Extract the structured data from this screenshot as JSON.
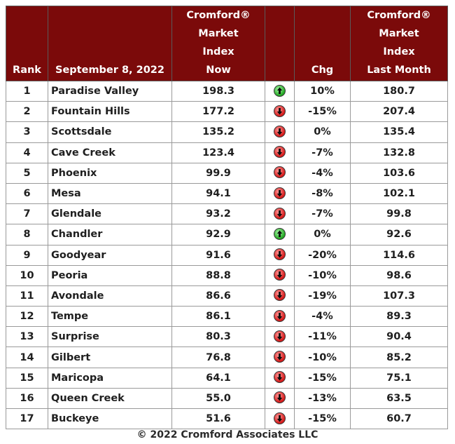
{
  "header": {
    "rank": "Rank",
    "date": "September 8, 2022",
    "cmi_now": [
      "Cromford®",
      "Market",
      "Index",
      "Now"
    ],
    "change": "Chg",
    "cmi_last_month": [
      "Cromford®",
      "Market",
      "Index",
      "Last Month"
    ]
  },
  "colors": {
    "header_bg": "#7b0a0a",
    "up_arrow": "#1fa51f",
    "down_arrow": "#d61616"
  },
  "chart_data": {
    "type": "table",
    "columns": [
      "Rank",
      "September 8, 2022",
      "Cromford® Market Index Now",
      "",
      "Chg",
      "Cromford® Market Index Last Month"
    ],
    "rows": [
      {
        "rank": "1",
        "city": "Paradise Valley",
        "now": "198.3",
        "direction": "up",
        "chg": "10%",
        "last_month": "180.7"
      },
      {
        "rank": "2",
        "city": "Fountain Hills",
        "now": "177.2",
        "direction": "down",
        "chg": "-15%",
        "last_month": "207.4"
      },
      {
        "rank": "3",
        "city": "Scottsdale",
        "now": "135.2",
        "direction": "down",
        "chg": "0%",
        "last_month": "135.4"
      },
      {
        "rank": "4",
        "city": "Cave Creek",
        "now": "123.4",
        "direction": "down",
        "chg": "-7%",
        "last_month": "132.8"
      },
      {
        "rank": "5",
        "city": "Phoenix",
        "now": "99.9",
        "direction": "down",
        "chg": "-4%",
        "last_month": "103.6"
      },
      {
        "rank": "6",
        "city": "Mesa",
        "now": "94.1",
        "direction": "down",
        "chg": "-8%",
        "last_month": "102.1"
      },
      {
        "rank": "7",
        "city": "Glendale",
        "now": "93.2",
        "direction": "down",
        "chg": "-7%",
        "last_month": "99.8"
      },
      {
        "rank": "8",
        "city": "Chandler",
        "now": "92.9",
        "direction": "up",
        "chg": "0%",
        "last_month": "92.6"
      },
      {
        "rank": "9",
        "city": "Goodyear",
        "now": "91.6",
        "direction": "down",
        "chg": "-20%",
        "last_month": "114.6"
      },
      {
        "rank": "10",
        "city": "Peoria",
        "now": "88.8",
        "direction": "down",
        "chg": "-10%",
        "last_month": "98.6"
      },
      {
        "rank": "11",
        "city": "Avondale",
        "now": "86.6",
        "direction": "down",
        "chg": "-19%",
        "last_month": "107.3"
      },
      {
        "rank": "12",
        "city": "Tempe",
        "now": "86.1",
        "direction": "down",
        "chg": "-4%",
        "last_month": "89.3"
      },
      {
        "rank": "13",
        "city": "Surprise",
        "now": "80.3",
        "direction": "down",
        "chg": "-11%",
        "last_month": "90.4"
      },
      {
        "rank": "14",
        "city": "Gilbert",
        "now": "76.8",
        "direction": "down",
        "chg": "-10%",
        "last_month": "85.2"
      },
      {
        "rank": "15",
        "city": "Maricopa",
        "now": "64.1",
        "direction": "down",
        "chg": "-15%",
        "last_month": "75.1"
      },
      {
        "rank": "16",
        "city": "Queen Creek",
        "now": "55.0",
        "direction": "down",
        "chg": "-13%",
        "last_month": "63.5"
      },
      {
        "rank": "17",
        "city": "Buckeye",
        "now": "51.6",
        "direction": "down",
        "chg": "-15%",
        "last_month": "60.7"
      }
    ]
  },
  "footer": "© 2022 Cromford Associates LLC"
}
